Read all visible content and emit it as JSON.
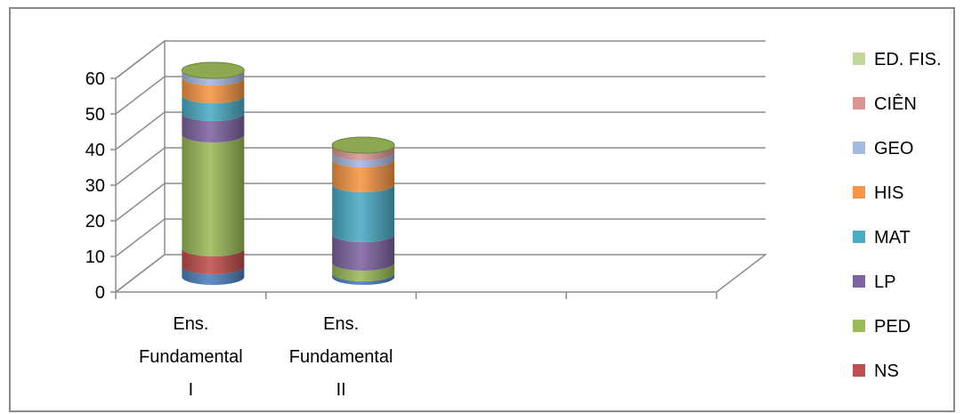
{
  "chart_data": {
    "type": "bar",
    "stacked": true,
    "style": "3d-cylinder",
    "categories": [
      [
        "Ens.",
        "Fundamental",
        "I"
      ],
      [
        "Ens.",
        "Fundamental",
        "II"
      ],
      [],
      []
    ],
    "yticks": [
      "0",
      "10",
      "20",
      "30",
      "40",
      "50",
      "60"
    ],
    "ylim": [
      0,
      60
    ],
    "grid": true,
    "legend_position": "right",
    "series": [
      {
        "name": "NS",
        "color": "#c0504d",
        "values": [
          5,
          0,
          0,
          0
        ]
      },
      {
        "name": "PED",
        "color": "#9bbb59",
        "values": [
          32,
          3,
          0,
          0
        ]
      },
      {
        "name": "LP",
        "color": "#8064a2",
        "values": [
          6,
          8,
          0,
          0
        ]
      },
      {
        "name": "MAT",
        "color": "#4bacc6",
        "values": [
          5,
          14,
          0,
          0
        ]
      },
      {
        "name": "HIS",
        "color": "#f79646",
        "values": [
          5,
          7,
          0,
          0
        ]
      },
      {
        "name": "GEO",
        "color": "#a6b9e0",
        "values": [
          2,
          2,
          0,
          0
        ]
      },
      {
        "name": "CIÊN",
        "color": "#d99694",
        "values": [
          0,
          2,
          0,
          0
        ]
      },
      {
        "name": "ED. FIS.",
        "color": "#c3d69b",
        "values": [
          0,
          0,
          0,
          0
        ]
      }
    ],
    "base_series": {
      "color": "#4f81bd",
      "values": [
        3,
        1,
        0,
        0
      ]
    }
  }
}
